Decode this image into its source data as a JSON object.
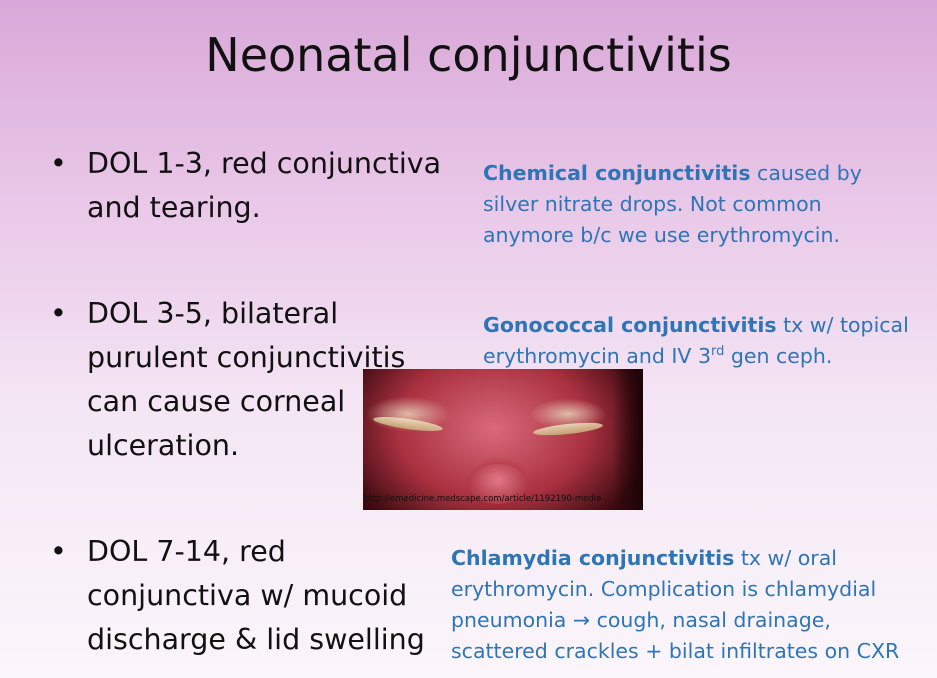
{
  "slide": {
    "title": "Neonatal conjunctivitis",
    "bullets": [
      {
        "marker": "•",
        "text": "DOL 1-3, red conjunctiva and tearing."
      },
      {
        "marker": "•",
        "text": "DOL 3-5, bilateral purulent conjunctivitis can cause corneal ulceration."
      },
      {
        "marker": "•",
        "text": "DOL 7-14, red conjunctiva w/ mucoid discharge & lid swelling"
      }
    ],
    "notes": [
      {
        "bold": "Chemical conjunctivitis",
        "text": " caused by silver nitrate drops. Not common anymore b/c we use erythromycin."
      },
      {
        "bold": "Gonococcal conjunctivitis",
        "text_before_sup": " tx w/ topical erythromycin and IV 3",
        "sup": "rd",
        "text_after_sup": " gen ceph."
      },
      {
        "bold": "Chlamydia conjunctivitis",
        "text": " tx w/ oral erythromycin. Complication is chlamydial pneumonia → cough, nasal drainage, scattered crackles + bilat infiltrates on CXR"
      }
    ],
    "image": {
      "credit": "http://emedicine.medscape.com/article/1192190-media"
    },
    "colors": {
      "note_blue": "#2e75b6",
      "background_top": "#d9a8d8",
      "background_bottom": "#fbf6fb"
    }
  }
}
